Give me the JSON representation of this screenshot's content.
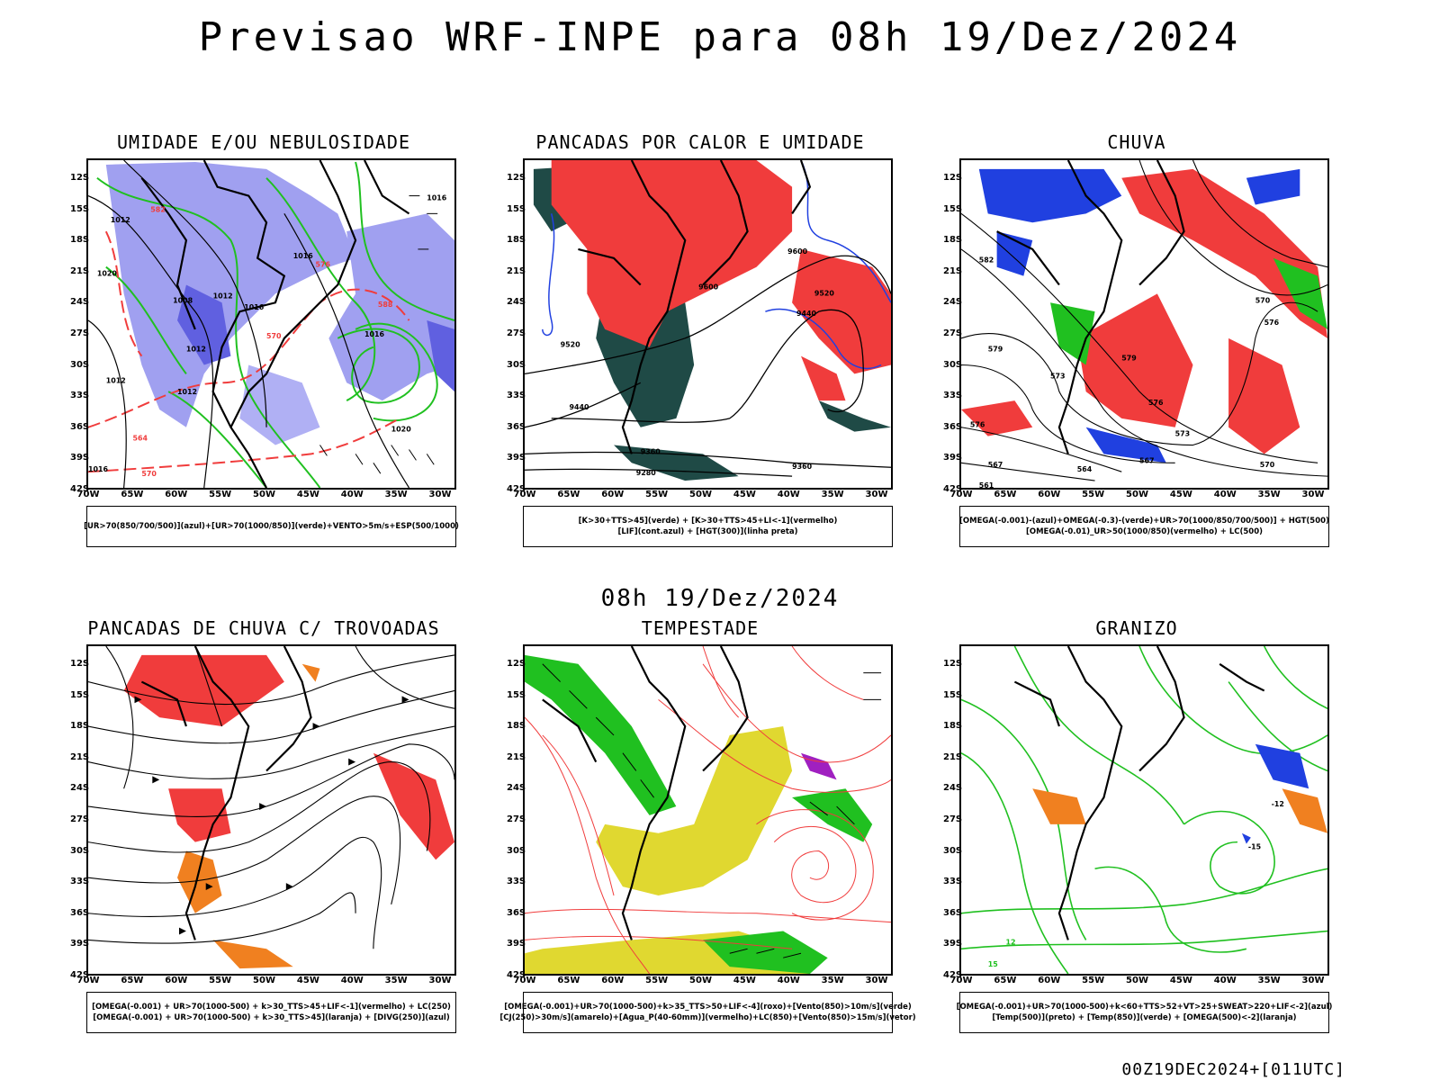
{
  "title": "Previsao WRF-INPE  para 08h 19/Dez/2024",
  "mid_title": "08h 19/Dez/2024",
  "stamp": "00Z19DEC2024+[011UTC]",
  "lat_labels": [
    "12S",
    "15S",
    "18S",
    "21S",
    "24S",
    "27S",
    "30S",
    "33S",
    "36S",
    "39S",
    "42S"
  ],
  "lon_labels": [
    "70W",
    "65W",
    "60W",
    "55W",
    "50W",
    "45W",
    "40W",
    "35W",
    "30W"
  ],
  "colors": {
    "red": "#f03c3c",
    "green": "#20c020",
    "blue": "#2040e0",
    "lavender": "#a0a0f0",
    "darkteal": "#1f4a46",
    "yellow": "#e0d830",
    "orange": "#f08020",
    "purple": "#a020c0"
  },
  "panels": [
    {
      "title": "UMIDADE E/OU NEBULOSIDADE",
      "legend": [
        "[UR>70(850/700/500)](azul)+[UR>70(1000/850)](verde)+VENTO>5m/s+ESP(500/1000)"
      ]
    },
    {
      "title": "PANCADAS POR CALOR E UMIDADE",
      "legend": [
        "[K>30+TTS>45](verde) + [K>30+TTS>45+LI<-1](vermelho)",
        "[LIF](cont.azul) + [HGT(300)](linha preta)"
      ]
    },
    {
      "title": "CHUVA",
      "legend": [
        "[OMEGA(-0.001)-(azul)+OMEGA(-0.3)-(verde)+UR>70(1000/850/700/500)] + HGT(500)",
        "[OMEGA(-0.01)_UR>50(1000/850)(vermelho) + LC(500)"
      ]
    },
    {
      "title": "PANCADAS DE CHUVA C/ TROVOADAS",
      "legend": [
        "[OMEGA(-0.001) + UR>70(1000-500) + k>30_TTS>45+LIF<-1](vermelho) + LC(250)",
        "[OMEGA(-0.001) + UR>70(1000-500) + k>30_TTS>45](laranja) + [DIVG(250)](azul)"
      ]
    },
    {
      "title": "TEMPESTADE",
      "legend": [
        "[OMEGA(-0.001)+UR>70(1000-500)+k>35_TTS>50+LIF<-4](roxo)+[Vento(850)>10m/s](verde)",
        "[CJ(250)>30m/s](amarelo)+[Agua_P(40-60mm)](vermelho)+LC(850)+[Vento(850)>15m/s](vetor)"
      ]
    },
    {
      "title": "GRANIZO",
      "legend": [
        "[OMEGA(-0.001)+UR>70(1000-500)+k<60+TTS>52+VT>25+SWEAT>220+LIF<-2](azul)",
        "[Temp(500)](preto) + [Temp(850)](verde) + [OMEGA(500)<-2](laranja)"
      ]
    }
  ],
  "contour_labels": {
    "p1": [
      "1016",
      "1012",
      "1020",
      "1016",
      "1012",
      "1008",
      "1012",
      "1016",
      "1020",
      "1012",
      "1016",
      "1016",
      "1012",
      "576",
      "570",
      "564",
      "582",
      "588",
      "570"
    ],
    "p2": [
      "9600",
      "9520",
      "9440",
      "9360",
      "9280",
      "9520",
      "9600",
      "9440",
      "9360"
    ],
    "p3": [
      "582",
      "579",
      "576",
      "573",
      "570",
      "567",
      "564",
      "561",
      "579",
      "576",
      "573",
      "570",
      "567",
      "576"
    ],
    "p6": [
      "-12",
      "-15",
      "12",
      "15"
    ]
  }
}
